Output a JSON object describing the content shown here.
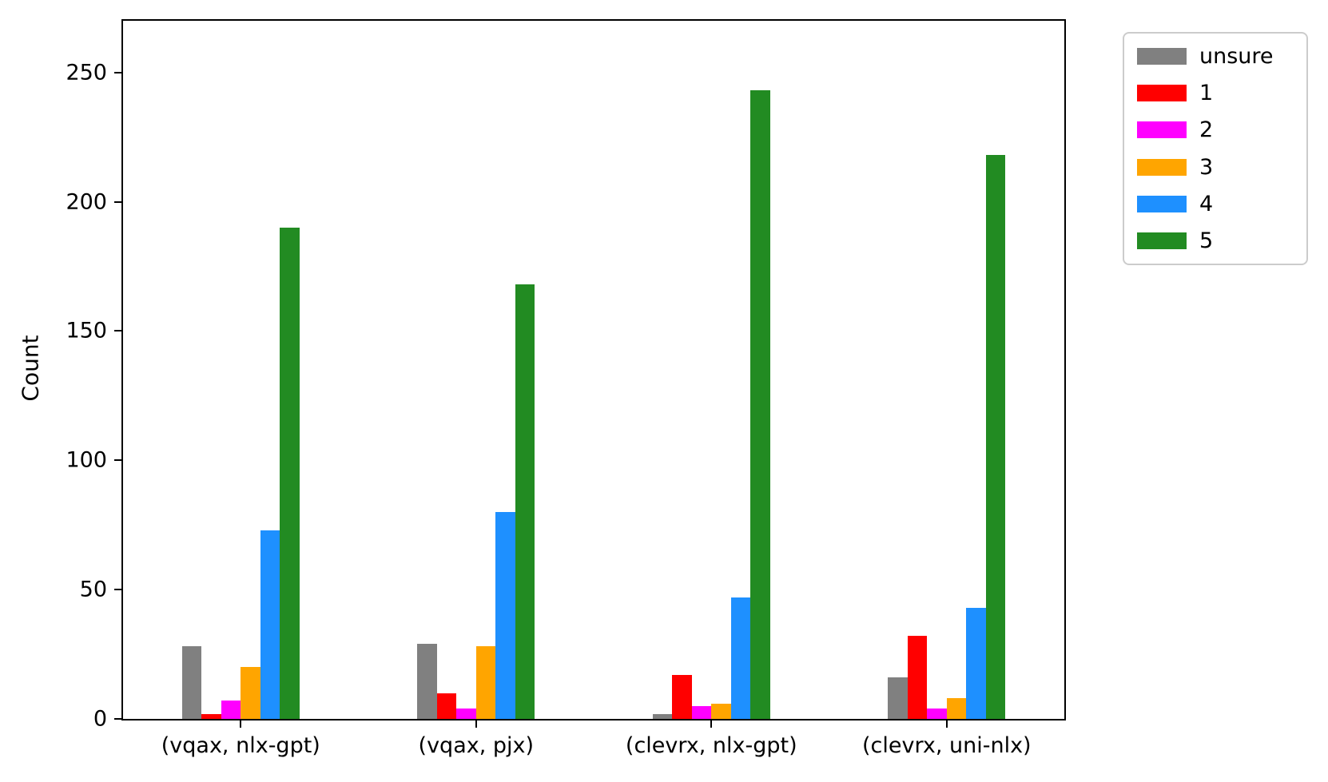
{
  "chart_data": {
    "type": "bar",
    "title": "",
    "xlabel": "",
    "ylabel": "Count",
    "categories": [
      "(vqax, nlx-gpt)",
      "(vqax, pjx)",
      "(clevrx, nlx-gpt)",
      "(clevrx, uni-nlx)"
    ],
    "series": [
      {
        "name": "unsure",
        "color": "#808080",
        "values": [
          28,
          29,
          2,
          16
        ]
      },
      {
        "name": "1",
        "color": "#ff0000",
        "values": [
          2,
          10,
          17,
          32
        ]
      },
      {
        "name": "2",
        "color": "#ff00ff",
        "values": [
          7,
          4,
          5,
          4
        ]
      },
      {
        "name": "3",
        "color": "#ffa500",
        "values": [
          20,
          28,
          6,
          8
        ]
      },
      {
        "name": "4",
        "color": "#1e90ff",
        "values": [
          73,
          80,
          47,
          43
        ]
      },
      {
        "name": "5",
        "color": "#228b22",
        "values": [
          190,
          168,
          243,
          218
        ]
      }
    ],
    "ylim": [
      0,
      270
    ],
    "yticks": [
      0,
      50,
      100,
      150,
      200,
      250
    ],
    "grid": false,
    "legend_position": "outside-top-right",
    "legend_border_color": "#cccccc",
    "axis_color": "#000000",
    "background_color": "#ffffff"
  }
}
